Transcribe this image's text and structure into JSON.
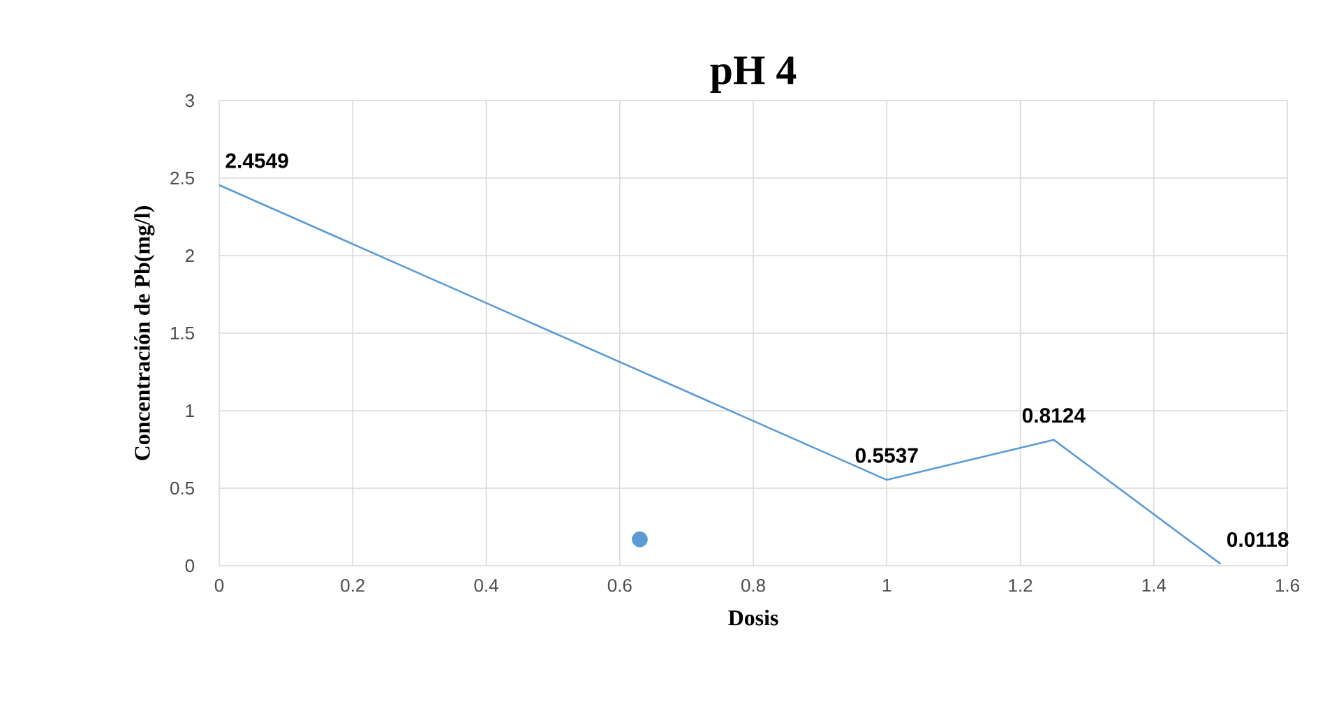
{
  "chart_data": {
    "type": "line",
    "title": "pH 4",
    "xlabel": "Dosis",
    "ylabel": "Concentración de Pb(mg/l)",
    "xlim": [
      0,
      1.6
    ],
    "xticks": [
      0,
      0.2,
      0.4,
      0.6,
      0.8,
      1,
      1.2,
      1.4,
      1.6
    ],
    "ylim": [
      0,
      3
    ],
    "yticks": [
      0,
      0.5,
      1,
      1.5,
      2,
      2.5,
      3
    ],
    "grid": true,
    "series": [
      {
        "color": "#5b9bd5",
        "x": [
          0,
          1,
          1.25,
          1.5
        ],
        "values": [
          2.4549,
          0.5537,
          0.8124,
          0.0118
        ],
        "value_labels": [
          "2.4549",
          "0.5537",
          "0.8124",
          "0.0118"
        ]
      },
      {
        "type": "scatter",
        "marker": "circle",
        "color": "#5b9bd5",
        "x": [
          0.63
        ],
        "values": [
          0.17
        ]
      }
    ]
  }
}
